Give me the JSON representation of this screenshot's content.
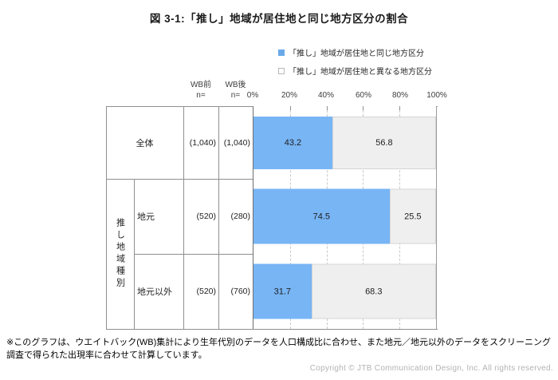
{
  "title": "図 3-1:「推し」地域が居住地と同じ地方区分の割合",
  "legend": [
    {
      "label": "「推し」地域が居住地と同じ地方区分",
      "color": "#6aa9e9",
      "filled": true
    },
    {
      "label": "「推し」地域が居住地と異なる地方区分",
      "color": "#efefef",
      "filled": false
    }
  ],
  "columns": {
    "wb_before_line1": "WB前",
    "wb_before_line2": "n=",
    "wb_after_line1": "WB後",
    "wb_after_line2": "n="
  },
  "axis": {
    "ticks": [
      "0%",
      "20%",
      "40%",
      "60%",
      "80%",
      "100%"
    ]
  },
  "table": {
    "group_label": "推し地域種別",
    "rows": [
      {
        "label": "全体",
        "wb_before": "(1,040)",
        "wb_after": "(1,040)"
      },
      {
        "label": "地元",
        "wb_before": "(520)",
        "wb_after": "(280)"
      },
      {
        "label": "地元以外",
        "wb_before": "(520)",
        "wb_after": "(760)"
      }
    ]
  },
  "chart_data": {
    "type": "bar",
    "orientation": "horizontal",
    "stacked": true,
    "title": "図 3-1:「推し」地域が居住地と同じ地方区分の割合",
    "categories": [
      "全体",
      "地元",
      "地元以外"
    ],
    "series": [
      {
        "name": "「推し」地域が居住地と同じ地方区分",
        "values": [
          43.2,
          74.5,
          31.7
        ],
        "color": "#78b5f5"
      },
      {
        "name": "「推し」地域が居住地と異なる地方区分",
        "values": [
          56.8,
          25.5,
          68.3
        ],
        "color": "#efefef"
      }
    ],
    "n_wb_before": [
      "(1,040)",
      "(520)",
      "(520)"
    ],
    "n_wb_after": [
      "(1,040)",
      "(280)",
      "(760)"
    ],
    "xlim": [
      0,
      100
    ],
    "x_tick_labels": [
      "0%",
      "20%",
      "40%",
      "60%",
      "80%",
      "100%"
    ],
    "grid": "dashed-vertical",
    "legend_position": "top"
  },
  "footnote": "※このグラフは、ウエイトバック(WB)集計により生年代別のデータを人口構成比に合わせ、また地元／地元以外のデータをスクリーニング調査で得られた出現率に合わせて計算しています。",
  "copyright": "Copyright © JTB Communication Design, Inc. All rights reserved."
}
